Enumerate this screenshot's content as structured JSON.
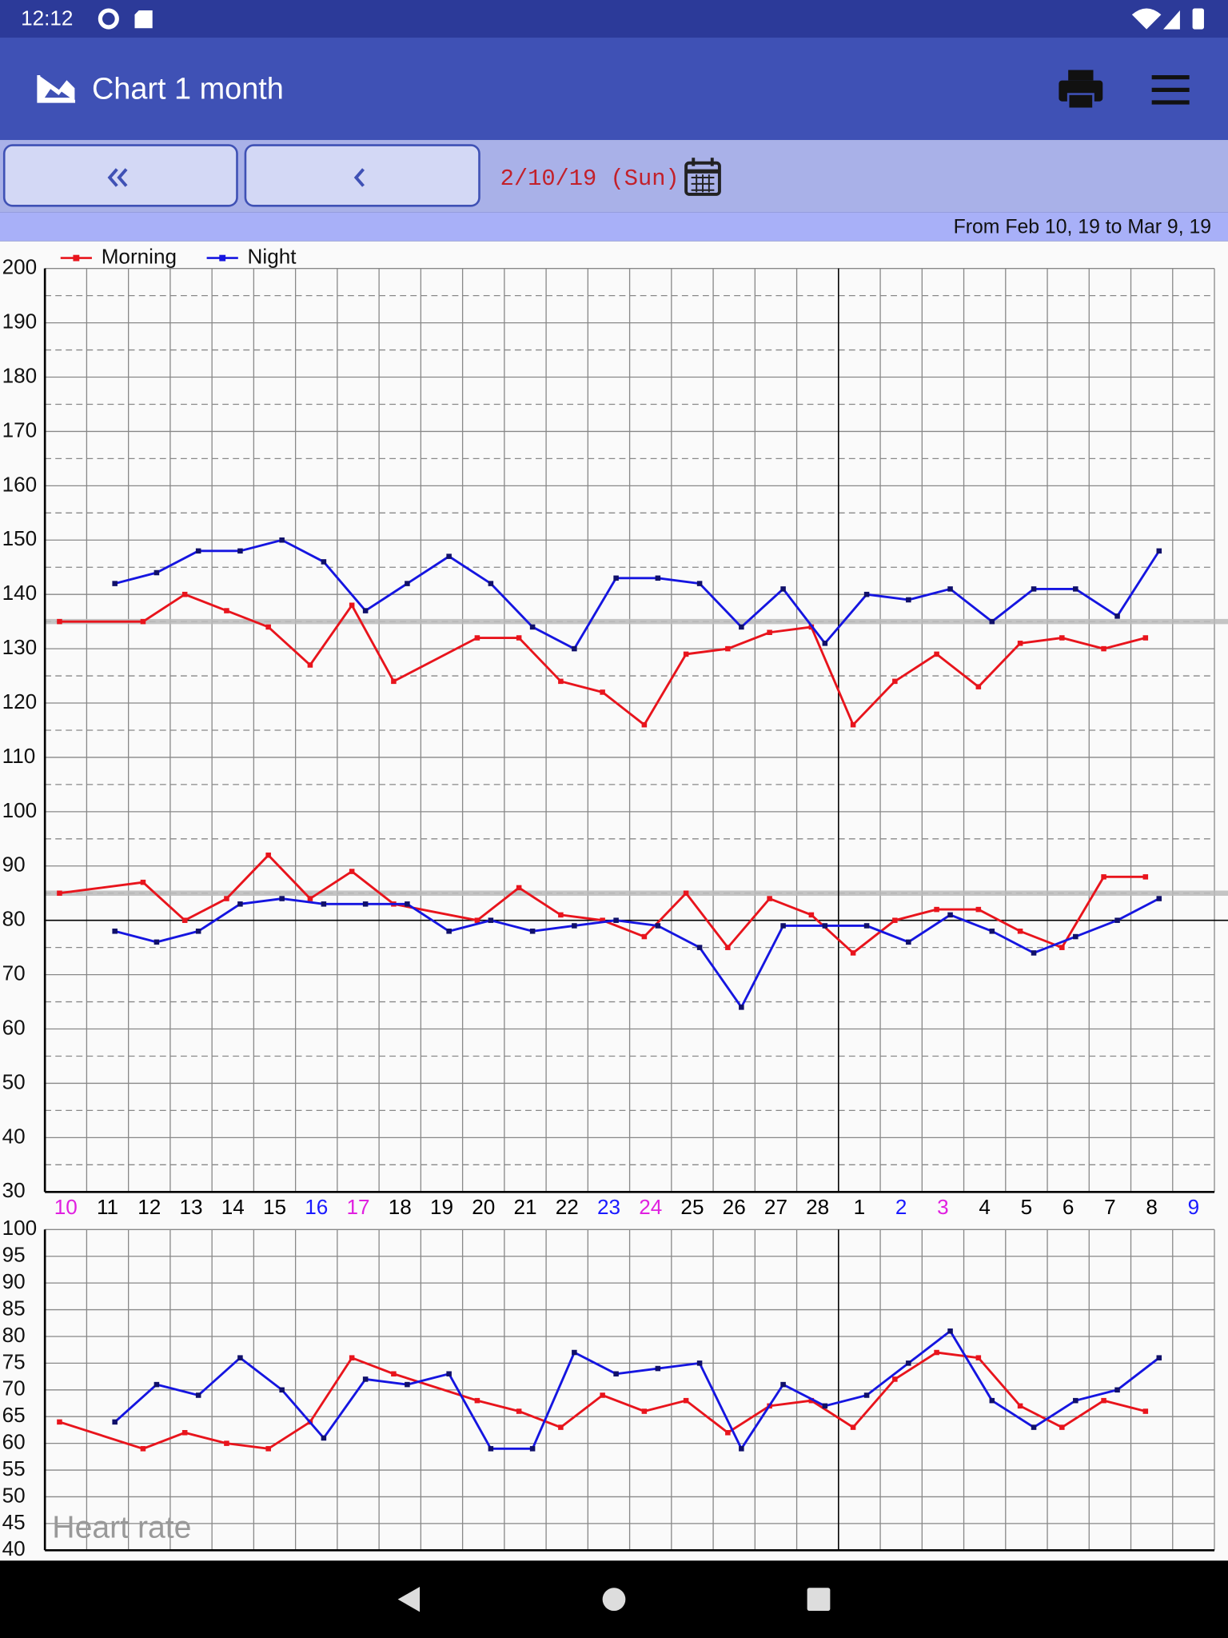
{
  "status_bar": {
    "time": "12:12"
  },
  "app_bar": {
    "title": "Chart 1 month"
  },
  "navigation": {
    "date": "2/10/19 (Sun)",
    "range": "From Feb 10, 19 to Mar 9, 19"
  },
  "chart_data": [
    {
      "type": "line",
      "categories": [
        "10",
        "11",
        "12",
        "13",
        "14",
        "15",
        "16",
        "17",
        "18",
        "19",
        "20",
        "21",
        "22",
        "23",
        "24",
        "25",
        "26",
        "27",
        "28",
        "1",
        "2",
        "3",
        "4",
        "5",
        "6",
        "7",
        "8",
        "9"
      ],
      "category_colors": [
        "#e020e0",
        "#000",
        "#000",
        "#000",
        "#000",
        "#000",
        "#1a1aff",
        "#e020e0",
        "#000",
        "#000",
        "#000",
        "#000",
        "#000",
        "#1a1aff",
        "#e020e0",
        "#000",
        "#000",
        "#000",
        "#000",
        "#000",
        "#1a1aff",
        "#e020e0",
        "#000",
        "#000",
        "#000",
        "#000",
        "#000",
        "#1a1aff"
      ],
      "x_labels": true,
      "legend": "top-left",
      "series": [
        {
          "name": "Morning",
          "color": "#e8141c",
          "marker_color": "#e8141c",
          "x": [
            "10",
            "12",
            "13",
            "14",
            "15",
            "16",
            "17",
            "18",
            "20",
            "21",
            "22",
            "23",
            "24",
            "25",
            "26",
            "27",
            "28",
            "1",
            "2",
            "3",
            "4",
            "5",
            "6",
            "7",
            "8"
          ],
          "values": [
            135,
            135,
            140,
            137,
            134,
            127,
            138,
            124,
            132,
            132,
            124,
            122,
            116,
            129,
            130,
            133,
            134,
            116,
            124,
            129,
            123,
            131,
            132,
            130,
            132
          ],
          "values_low": [
            85,
            87,
            80,
            84,
            92,
            84,
            89,
            83,
            80,
            86,
            81,
            80,
            77,
            85,
            75,
            84,
            81,
            74,
            80,
            82,
            82,
            78,
            75,
            88,
            88
          ]
        },
        {
          "name": "Night",
          "color": "#1515e0",
          "marker_color": "#10106a",
          "x": [
            "11",
            "12",
            "13",
            "14",
            "15",
            "16",
            "17",
            "18",
            "19",
            "20",
            "21",
            "22",
            "23",
            "24",
            "25",
            "26",
            "27",
            "28",
            "1",
            "2",
            "3",
            "4",
            "5",
            "6",
            "7",
            "8"
          ],
          "values": [
            142,
            144,
            148,
            148,
            150,
            146,
            137,
            142,
            147,
            142,
            134,
            130,
            143,
            143,
            142,
            134,
            141,
            131,
            140,
            139,
            141,
            135,
            141,
            141,
            136,
            148
          ],
          "values_low": [
            78,
            76,
            78,
            83,
            84,
            83,
            83,
            83,
            78,
            80,
            78,
            79,
            80,
            79,
            75,
            64,
            79,
            79,
            79,
            76,
            81,
            78,
            74,
            77,
            80,
            84
          ]
        }
      ],
      "ylim": [
        30,
        200
      ],
      "yticks": [
        30,
        40,
        50,
        60,
        70,
        80,
        90,
        100,
        110,
        120,
        130,
        140,
        150,
        160,
        170,
        180,
        190,
        200
      ],
      "minor_yticks": [
        35,
        45,
        55,
        65,
        75,
        85,
        95,
        105,
        115,
        125,
        135,
        145,
        155,
        165,
        175,
        185,
        195
      ],
      "target_lines": [
        135,
        85
      ],
      "baseline": 80,
      "grid": true
    },
    {
      "type": "line",
      "title": "Heart rate",
      "categories": [
        "10",
        "11",
        "12",
        "13",
        "14",
        "15",
        "16",
        "17",
        "18",
        "19",
        "20",
        "21",
        "22",
        "23",
        "24",
        "25",
        "26",
        "27",
        "28",
        "1",
        "2",
        "3",
        "4",
        "5",
        "6",
        "7",
        "8",
        "9"
      ],
      "x_labels": false,
      "series": [
        {
          "color": "#e8141c",
          "marker_color": "#e8141c",
          "x": [
            "10",
            "12",
            "13",
            "14",
            "15",
            "16",
            "17",
            "18",
            "20",
            "21",
            "22",
            "23",
            "24",
            "25",
            "26",
            "27",
            "28",
            "1",
            "2",
            "3",
            "4",
            "5",
            "6",
            "7",
            "8"
          ],
          "values": [
            64,
            59,
            62,
            60,
            59,
            64,
            76,
            73,
            68,
            66,
            63,
            69,
            66,
            68,
            62,
            67,
            68,
            63,
            72,
            77,
            76,
            67,
            63,
            68,
            66
          ]
        },
        {
          "color": "#1515e0",
          "marker_color": "#10106a",
          "x": [
            "11",
            "12",
            "13",
            "14",
            "15",
            "16",
            "17",
            "18",
            "19",
            "20",
            "21",
            "22",
            "23",
            "24",
            "25",
            "26",
            "27",
            "28",
            "1",
            "2",
            "3",
            "4",
            "5",
            "6",
            "7",
            "8"
          ],
          "values": [
            64,
            71,
            69,
            76,
            70,
            61,
            72,
            71,
            73,
            59,
            59,
            77,
            73,
            74,
            75,
            59,
            71,
            67,
            69,
            75,
            81,
            68,
            63,
            68,
            70,
            76
          ]
        }
      ],
      "ylim": [
        40,
        100
      ],
      "yticks": [
        40,
        45,
        50,
        55,
        60,
        65,
        70,
        75,
        80,
        85,
        90,
        95,
        100
      ],
      "grid": true
    }
  ]
}
